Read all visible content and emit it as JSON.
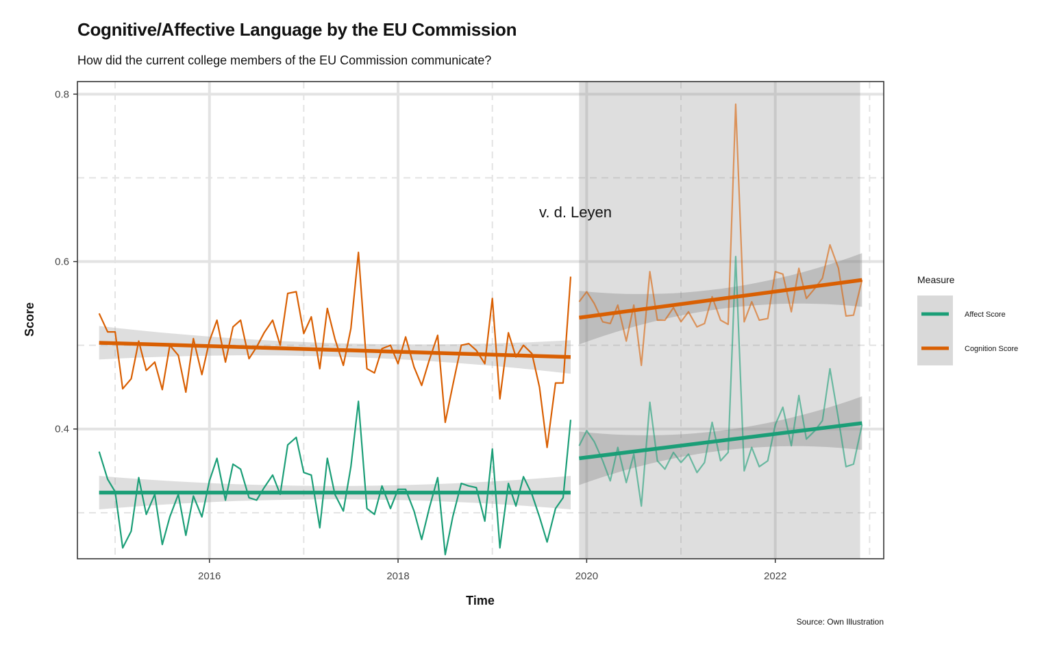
{
  "chart_data": {
    "type": "line",
    "title": "Cognitive/Affective Language by the EU Commission",
    "subtitle": "How did the current college members of the EU Commission communicate?",
    "caption": "Source: Own Illustration",
    "xlabel": "Time",
    "ylabel": "Score",
    "xlim": [
      2014.6,
      2023.15
    ],
    "ylim": [
      0.245,
      0.815
    ],
    "x_ticks": [
      2016,
      2018,
      2020,
      2022
    ],
    "y_ticks": [
      0.4,
      0.6,
      0.8
    ],
    "grid": true,
    "legend_position": "right",
    "legend_title": "Measure",
    "shaded_region": {
      "x_start": 2019.92,
      "x_end": 2022.9
    },
    "annotation": {
      "text": "v. d. Leyen",
      "x": 2019.92,
      "y": 0.65
    },
    "series": [
      {
        "name": "Affect Score",
        "color": "#1b9e77",
        "period1": {
          "x": [
            2014.83,
            2014.92,
            2015.0,
            2015.08,
            2015.17,
            2015.25,
            2015.33,
            2015.42,
            2015.5,
            2015.58,
            2015.67,
            2015.75,
            2015.83,
            2015.92,
            2016.0,
            2016.08,
            2016.17,
            2016.25,
            2016.33,
            2016.42,
            2016.5,
            2016.58,
            2016.67,
            2016.75,
            2016.83,
            2016.92,
            2017.0,
            2017.08,
            2017.17,
            2017.25,
            2017.33,
            2017.42,
            2017.5,
            2017.58,
            2017.67,
            2017.75,
            2017.83,
            2017.92,
            2018.0,
            2018.08,
            2018.17,
            2018.25,
            2018.33,
            2018.42,
            2018.5,
            2018.58,
            2018.67,
            2018.75,
            2018.83,
            2018.92,
            2019.0,
            2019.08,
            2019.17,
            2019.25,
            2019.33,
            2019.42,
            2019.5,
            2019.58,
            2019.67,
            2019.75,
            2019.83
          ],
          "values": [
            0.373,
            0.34,
            0.325,
            0.258,
            0.278,
            0.342,
            0.298,
            0.322,
            0.262,
            0.295,
            0.322,
            0.273,
            0.32,
            0.295,
            0.338,
            0.365,
            0.315,
            0.358,
            0.352,
            0.318,
            0.315,
            0.33,
            0.345,
            0.322,
            0.381,
            0.39,
            0.348,
            0.345,
            0.282,
            0.365,
            0.322,
            0.302,
            0.355,
            0.433,
            0.305,
            0.298,
            0.332,
            0.305,
            0.328,
            0.328,
            0.302,
            0.268,
            0.305,
            0.342,
            0.25,
            0.295,
            0.335,
            0.332,
            0.33,
            0.29,
            0.376,
            0.258,
            0.335,
            0.308,
            0.343,
            0.322,
            0.295,
            0.265,
            0.305,
            0.318,
            0.411
          ]
        },
        "period2": {
          "x": [
            2019.92,
            2020.0,
            2020.08,
            2020.17,
            2020.25,
            2020.33,
            2020.42,
            2020.5,
            2020.58,
            2020.67,
            2020.75,
            2020.83,
            2020.92,
            2021.0,
            2021.08,
            2021.17,
            2021.25,
            2021.33,
            2021.42,
            2021.5,
            2021.58,
            2021.67,
            2021.75,
            2021.83,
            2021.92,
            2022.0,
            2022.08,
            2022.17,
            2022.25,
            2022.33,
            2022.42,
            2022.5,
            2022.58,
            2022.67,
            2022.75,
            2022.83,
            2022.92
          ],
          "values": [
            0.38,
            0.398,
            0.385,
            0.362,
            0.338,
            0.378,
            0.336,
            0.37,
            0.308,
            0.432,
            0.362,
            0.352,
            0.372,
            0.36,
            0.37,
            0.348,
            0.36,
            0.408,
            0.362,
            0.372,
            0.606,
            0.35,
            0.378,
            0.355,
            0.362,
            0.405,
            0.426,
            0.38,
            0.44,
            0.388,
            0.398,
            0.41,
            0.472,
            0.412,
            0.355,
            0.358,
            0.405
          ]
        },
        "trend1": [
          [
            2014.83,
            0.324
          ],
          [
            2019.83,
            0.324
          ]
        ],
        "trend2": [
          [
            2019.92,
            0.365
          ],
          [
            2022.92,
            0.407
          ]
        ]
      },
      {
        "name": "Cognition Score",
        "color": "#d95f02",
        "period1": {
          "x": [
            2014.83,
            2014.92,
            2015.0,
            2015.08,
            2015.17,
            2015.25,
            2015.33,
            2015.42,
            2015.5,
            2015.58,
            2015.67,
            2015.75,
            2015.83,
            2015.92,
            2016.0,
            2016.08,
            2016.17,
            2016.25,
            2016.33,
            2016.42,
            2016.5,
            2016.58,
            2016.67,
            2016.75,
            2016.83,
            2016.92,
            2017.0,
            2017.08,
            2017.17,
            2017.25,
            2017.33,
            2017.42,
            2017.5,
            2017.58,
            2017.67,
            2017.75,
            2017.83,
            2017.92,
            2018.0,
            2018.08,
            2018.17,
            2018.25,
            2018.33,
            2018.42,
            2018.5,
            2018.58,
            2018.67,
            2018.75,
            2018.83,
            2018.92,
            2019.0,
            2019.08,
            2019.17,
            2019.25,
            2019.33,
            2019.42,
            2019.5,
            2019.58,
            2019.67,
            2019.75,
            2019.83
          ],
          "values": [
            0.538,
            0.516,
            0.516,
            0.448,
            0.46,
            0.505,
            0.47,
            0.48,
            0.447,
            0.5,
            0.488,
            0.444,
            0.508,
            0.465,
            0.505,
            0.53,
            0.48,
            0.522,
            0.53,
            0.484,
            0.498,
            0.515,
            0.53,
            0.5,
            0.562,
            0.564,
            0.514,
            0.534,
            0.472,
            0.544,
            0.508,
            0.476,
            0.52,
            0.611,
            0.472,
            0.467,
            0.496,
            0.5,
            0.478,
            0.51,
            0.474,
            0.452,
            0.482,
            0.512,
            0.408,
            0.452,
            0.5,
            0.502,
            0.494,
            0.478,
            0.556,
            0.436,
            0.515,
            0.486,
            0.5,
            0.49,
            0.45,
            0.378,
            0.455,
            0.455,
            0.582
          ]
        },
        "period2": {
          "x": [
            2019.92,
            2020.0,
            2020.08,
            2020.17,
            2020.25,
            2020.33,
            2020.42,
            2020.5,
            2020.58,
            2020.67,
            2020.75,
            2020.83,
            2020.92,
            2021.0,
            2021.08,
            2021.17,
            2021.25,
            2021.33,
            2021.42,
            2021.5,
            2021.58,
            2021.67,
            2021.75,
            2021.83,
            2021.92,
            2022.0,
            2022.08,
            2022.17,
            2022.25,
            2022.33,
            2022.42,
            2022.5,
            2022.58,
            2022.67,
            2022.75,
            2022.83,
            2022.92
          ],
          "values": [
            0.552,
            0.564,
            0.55,
            0.528,
            0.526,
            0.548,
            0.505,
            0.548,
            0.476,
            0.588,
            0.53,
            0.53,
            0.545,
            0.528,
            0.54,
            0.522,
            0.526,
            0.558,
            0.53,
            0.525,
            0.788,
            0.528,
            0.552,
            0.53,
            0.532,
            0.588,
            0.585,
            0.54,
            0.592,
            0.556,
            0.568,
            0.58,
            0.62,
            0.592,
            0.535,
            0.536,
            0.578
          ]
        },
        "trend1": [
          [
            2014.83,
            0.503
          ],
          [
            2019.83,
            0.486
          ]
        ],
        "trend2": [
          [
            2019.92,
            0.533
          ],
          [
            2022.92,
            0.578
          ]
        ]
      }
    ]
  }
}
